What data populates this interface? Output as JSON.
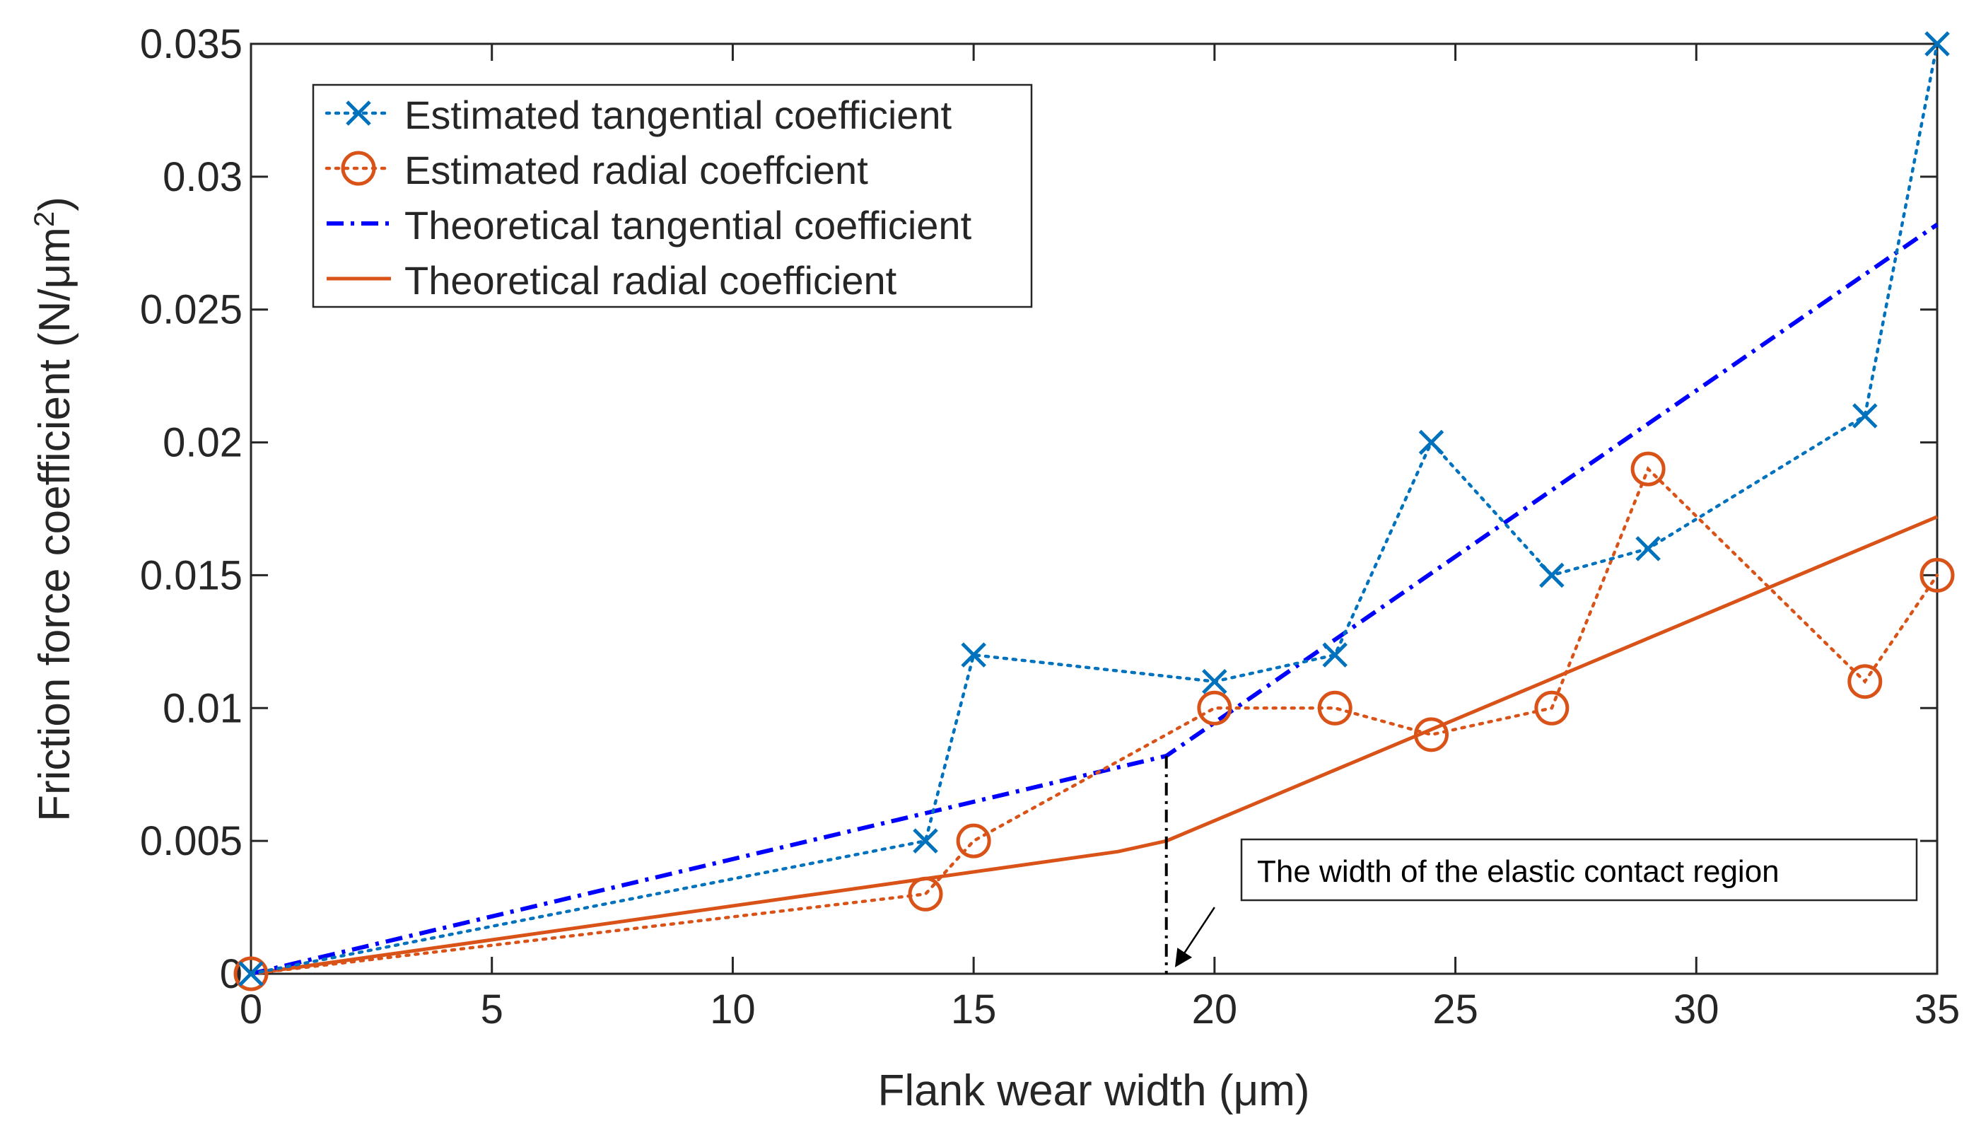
{
  "chart_data": {
    "type": "line",
    "title": "",
    "xlabel": "Flank wear width (μm)",
    "ylabel_main": "Friction force coefficient (N/μm",
    "ylabel_sup": "2",
    "ylabel_end": ")",
    "xlim": [
      0,
      35
    ],
    "ylim": [
      0,
      0.035
    ],
    "xticks": [
      0,
      5,
      10,
      15,
      20,
      25,
      30,
      35
    ],
    "xtick_labels": [
      "0",
      "5",
      "10",
      "15",
      "20",
      "25",
      "30",
      "35"
    ],
    "yticks": [
      0,
      0.005,
      0.01,
      0.015,
      0.02,
      0.025,
      0.03,
      0.035
    ],
    "ytick_labels": [
      "0",
      "0.005",
      "0.01",
      "0.015",
      "0.02",
      "0.025",
      "0.03",
      "0.035"
    ],
    "grid": false,
    "legend_position": "top-left",
    "series": [
      {
        "name": "Estimated tangential coefficient",
        "style": "dotted",
        "marker": "x",
        "color": "#0072BD",
        "x": [
          0,
          14,
          15,
          20,
          22.5,
          24.5,
          27,
          29,
          33.5,
          35
        ],
        "y": [
          0,
          0.005,
          0.012,
          0.011,
          0.012,
          0.02,
          0.015,
          0.016,
          0.021,
          0.035
        ]
      },
      {
        "name": "Estimated radial coeffcient",
        "style": "dotted",
        "marker": "o",
        "color": "#D95319",
        "x": [
          0,
          14,
          15,
          20,
          22.5,
          24.5,
          27,
          29,
          33.5,
          35
        ],
        "y": [
          0,
          0.003,
          0.005,
          0.01,
          0.01,
          0.009,
          0.01,
          0.019,
          0.011,
          0.015
        ]
      },
      {
        "name": "Theoretical tangential coefficient",
        "style": "dashdot",
        "marker": "none",
        "color": "#0000FF",
        "x": [
          0,
          19,
          35
        ],
        "y": [
          0,
          0.0082,
          0.0282
        ]
      },
      {
        "name": "Theoretical radial coefficient",
        "style": "solid",
        "marker": "none",
        "color": "#D95319",
        "x": [
          0,
          18,
          19,
          35
        ],
        "y": [
          0,
          0.0046,
          0.005,
          0.0172
        ]
      }
    ],
    "annotations": [
      {
        "text": "The width of the elastic contact region",
        "vline_x": 19,
        "vline_y_top": 0.0082,
        "arrow_from": [
          20,
          0.0025
        ],
        "arrow_to": [
          19.2,
          0.0003
        ]
      }
    ]
  }
}
